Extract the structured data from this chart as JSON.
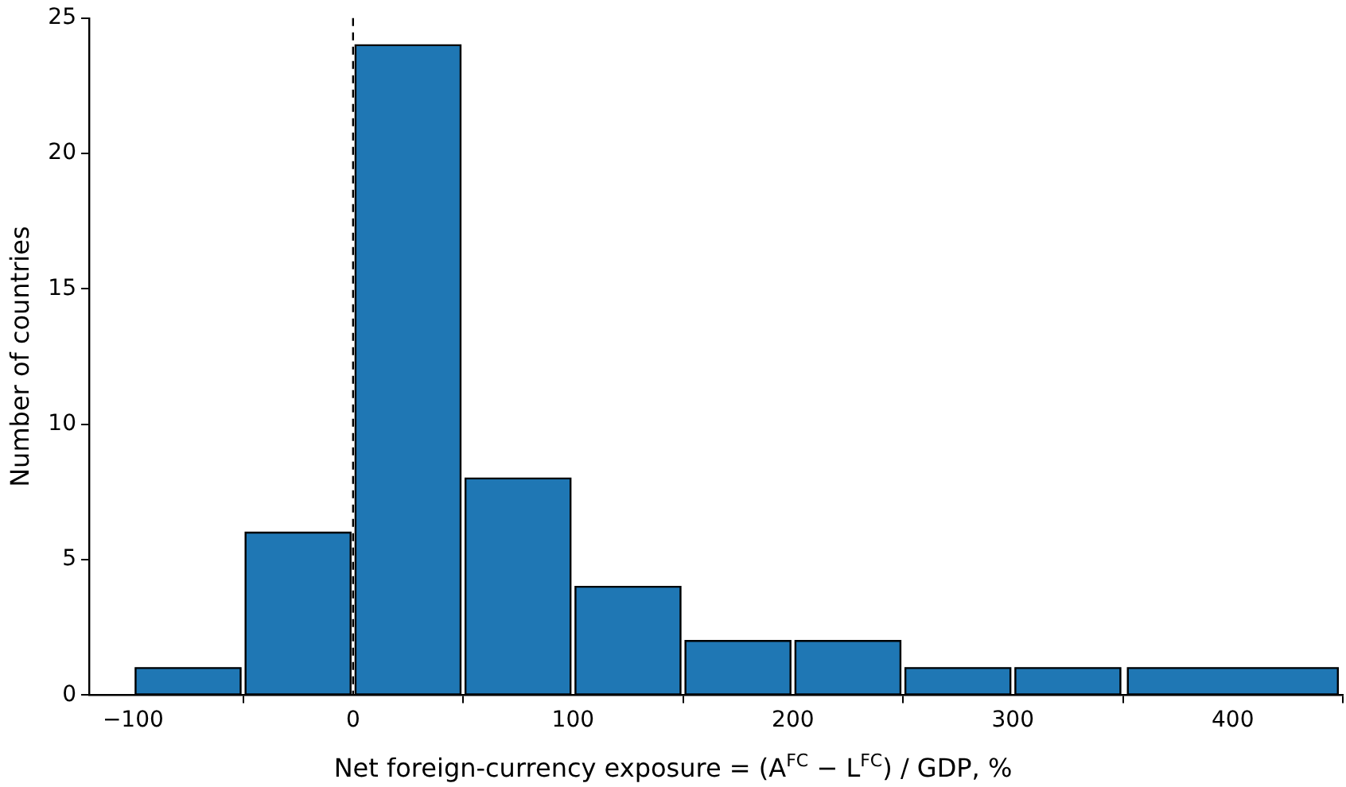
{
  "chart_data": {
    "type": "histogram",
    "xlabel": "Net foreign-currency exposure = (A$^{FC}$ − L$^{FC}$) / GDP, %",
    "ylabel": "Number of countries",
    "bins": [
      -100,
      -50,
      0,
      50,
      100,
      150,
      200,
      250,
      300,
      350,
      450
    ],
    "values": [
      1,
      6,
      24,
      8,
      4,
      2,
      2,
      1,
      1,
      1
    ],
    "color": "#1f77b4",
    "xlim": [
      -120,
      450
    ],
    "xticks": [
      {
        "value": -100,
        "label": "−100"
      },
      0,
      100,
      200,
      300,
      400
    ],
    "ylim": [
      0,
      25
    ],
    "yticks": [
      0,
      5,
      10,
      15,
      20,
      25
    ],
    "ref_lines": [
      {
        "axis": "x",
        "value": 0,
        "color": "#000000",
        "line_style": "dashed"
      }
    ],
    "grid": false,
    "legend": false
  }
}
